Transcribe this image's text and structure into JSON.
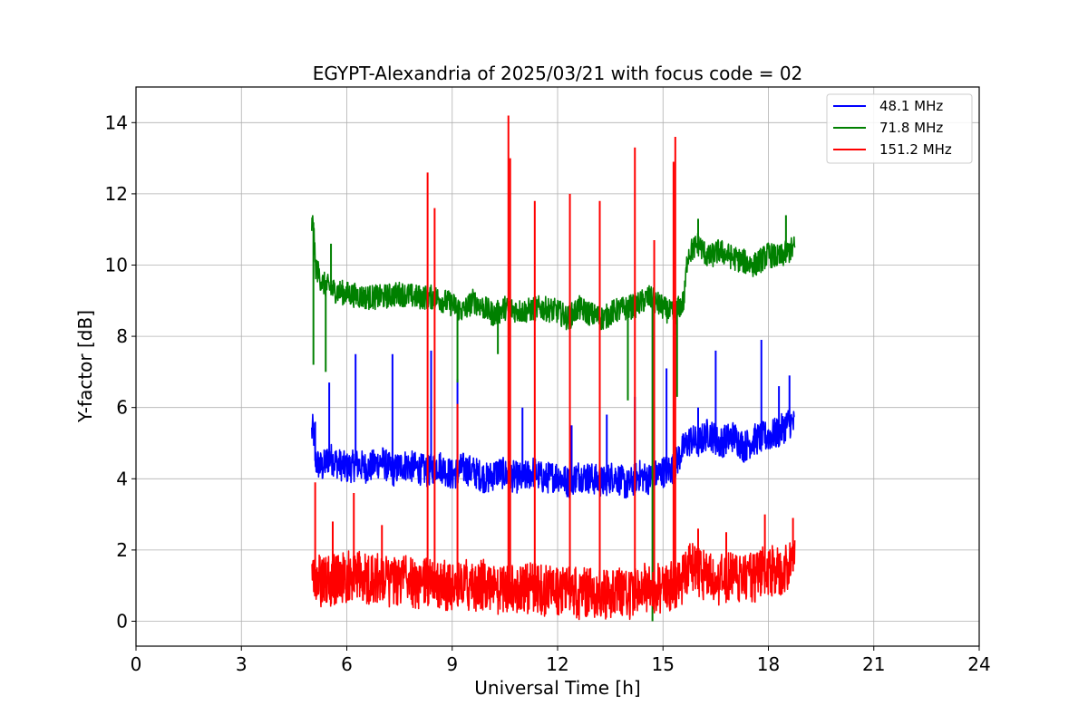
{
  "chart_data": {
    "type": "line",
    "title": "EGYPT-Alexandria of 2025/03/21 with focus code = 02",
    "xlabel": "Universal Time [h]",
    "ylabel": "Y-factor [dB]",
    "xlim": [
      0,
      24
    ],
    "ylim": [
      -0.7,
      15
    ],
    "xticks": [
      0,
      3,
      6,
      9,
      12,
      15,
      18,
      21,
      24
    ],
    "xtick_labels": [
      "0",
      "3",
      "6",
      "9",
      "12",
      "15",
      "18",
      "21",
      "24"
    ],
    "yticks": [
      0,
      2,
      4,
      6,
      8,
      10,
      12,
      14
    ],
    "ytick_labels": [
      "0",
      "2",
      "4",
      "6",
      "8",
      "10",
      "12",
      "14"
    ],
    "grid": true,
    "legend_position": "top-right",
    "series": [
      {
        "name": " 48.1 MHz",
        "color": "#0000ff",
        "x": [
          5.0,
          5.05,
          5.1,
          5.2,
          5.3,
          5.5,
          5.8,
          6.0,
          6.3,
          6.6,
          7.0,
          7.3,
          7.6,
          8.0,
          8.3,
          8.6,
          9.0,
          9.3,
          9.6,
          10.0,
          10.3,
          10.6,
          11.0,
          11.3,
          11.6,
          12.0,
          12.3,
          12.6,
          13.0,
          13.3,
          13.6,
          14.0,
          14.3,
          14.6,
          15.0,
          15.3,
          15.6,
          15.8,
          16.0,
          16.3,
          16.6,
          17.0,
          17.3,
          17.6,
          18.0,
          18.3,
          18.6,
          18.75
        ],
        "y": [
          5.3,
          5.4,
          4.5,
          4.4,
          4.3,
          4.6,
          4.4,
          4.3,
          4.4,
          4.3,
          4.5,
          4.2,
          4.4,
          4.3,
          4.2,
          4.4,
          4.1,
          4.3,
          4.2,
          4.0,
          4.2,
          4.1,
          4.0,
          4.2,
          4.0,
          4.1,
          3.9,
          4.1,
          4.0,
          3.9,
          4.1,
          3.8,
          4.1,
          4.0,
          4.2,
          4.3,
          4.9,
          5.1,
          5.0,
          5.3,
          5.0,
          5.2,
          4.9,
          5.1,
          5.2,
          5.3,
          5.6,
          5.5
        ],
        "spikes": [
          [
            5.1,
            5.6
          ],
          [
            5.5,
            6.7
          ],
          [
            6.25,
            7.5
          ],
          [
            7.3,
            7.5
          ],
          [
            8.4,
            7.6
          ],
          [
            9.15,
            6.8
          ],
          [
            11.0,
            6.0
          ],
          [
            12.4,
            5.5
          ],
          [
            13.4,
            5.8
          ],
          [
            14.2,
            6.3
          ],
          [
            15.1,
            7.1
          ],
          [
            16.0,
            6.0
          ],
          [
            16.5,
            7.6
          ],
          [
            17.8,
            7.9
          ],
          [
            18.3,
            6.6
          ],
          [
            18.6,
            6.9
          ]
        ]
      },
      {
        "name": "  71.8 MHz",
        "color": "#008000",
        "x": [
          5.0,
          5.05,
          5.1,
          5.3,
          5.6,
          6.0,
          6.5,
          7.0,
          7.5,
          8.0,
          8.5,
          9.0,
          9.3,
          9.6,
          9.9,
          10.2,
          10.5,
          11.0,
          11.5,
          12.0,
          12.3,
          12.6,
          13.0,
          13.3,
          13.6,
          14.0,
          14.3,
          14.6,
          15.0,
          15.3,
          15.6,
          15.7,
          16.0,
          16.3,
          16.6,
          17.0,
          17.3,
          17.6,
          18.0,
          18.3,
          18.6,
          18.75
        ],
        "y": [
          11.1,
          11.2,
          10.0,
          9.5,
          9.3,
          9.2,
          9.1,
          9.1,
          9.2,
          9.1,
          9.1,
          8.9,
          8.7,
          9.0,
          8.8,
          8.6,
          8.8,
          8.7,
          8.8,
          8.7,
          8.5,
          8.8,
          8.6,
          8.5,
          8.7,
          8.8,
          8.9,
          9.1,
          8.8,
          8.6,
          9.0,
          10.3,
          10.6,
          10.2,
          10.4,
          10.2,
          10.1,
          10.0,
          10.3,
          10.2,
          10.4,
          10.5
        ],
        "spikes": [
          [
            5.05,
            7.2
          ],
          [
            5.4,
            7.0
          ],
          [
            5.55,
            10.6
          ],
          [
            9.15,
            6.7
          ],
          [
            10.3,
            7.5
          ],
          [
            14.0,
            6.2
          ],
          [
            14.7,
            0.0
          ],
          [
            15.4,
            6.3
          ],
          [
            16.0,
            11.3
          ],
          [
            18.5,
            11.4
          ]
        ]
      },
      {
        "name": " 151.2 MHz",
        "color": "#ff0000",
        "x": [
          5.0,
          5.05,
          5.1,
          5.3,
          5.6,
          6.0,
          6.3,
          6.6,
          7.0,
          7.3,
          7.6,
          8.0,
          8.3,
          8.6,
          9.0,
          9.3,
          9.6,
          10.0,
          10.3,
          10.6,
          11.0,
          11.3,
          11.6,
          12.0,
          12.3,
          12.6,
          13.0,
          13.3,
          13.6,
          14.0,
          14.3,
          14.6,
          15.0,
          15.3,
          15.6,
          15.8,
          16.0,
          16.3,
          16.6,
          17.0,
          17.3,
          17.6,
          18.0,
          18.3,
          18.6,
          18.75
        ],
        "y": [
          1.5,
          0.8,
          0.9,
          0.6,
          0.7,
          0.8,
          0.9,
          0.7,
          0.8,
          0.6,
          0.7,
          0.6,
          0.7,
          0.6,
          0.5,
          0.6,
          0.5,
          0.6,
          0.4,
          0.5,
          0.4,
          0.5,
          0.4,
          0.4,
          0.5,
          0.3,
          0.4,
          0.3,
          0.4,
          0.3,
          0.4,
          0.5,
          0.5,
          0.6,
          0.7,
          1.1,
          0.9,
          0.8,
          0.7,
          0.8,
          0.7,
          0.8,
          1.0,
          0.9,
          1.0,
          1.6
        ],
        "spikes": [
          [
            5.1,
            3.9
          ],
          [
            5.6,
            2.8
          ],
          [
            6.2,
            3.6
          ],
          [
            7.0,
            2.7
          ],
          [
            8.3,
            12.6
          ],
          [
            8.5,
            11.6
          ],
          [
            9.15,
            6.1
          ],
          [
            10.6,
            14.2
          ],
          [
            10.65,
            13.0
          ],
          [
            11.35,
            11.8
          ],
          [
            12.35,
            12.0
          ],
          [
            13.2,
            11.8
          ],
          [
            14.2,
            13.3
          ],
          [
            14.75,
            10.7
          ],
          [
            15.3,
            12.9
          ],
          [
            15.35,
            13.6
          ],
          [
            16.0,
            2.6
          ],
          [
            16.8,
            2.5
          ],
          [
            17.9,
            3.0
          ],
          [
            18.7,
            2.9
          ]
        ]
      }
    ]
  }
}
